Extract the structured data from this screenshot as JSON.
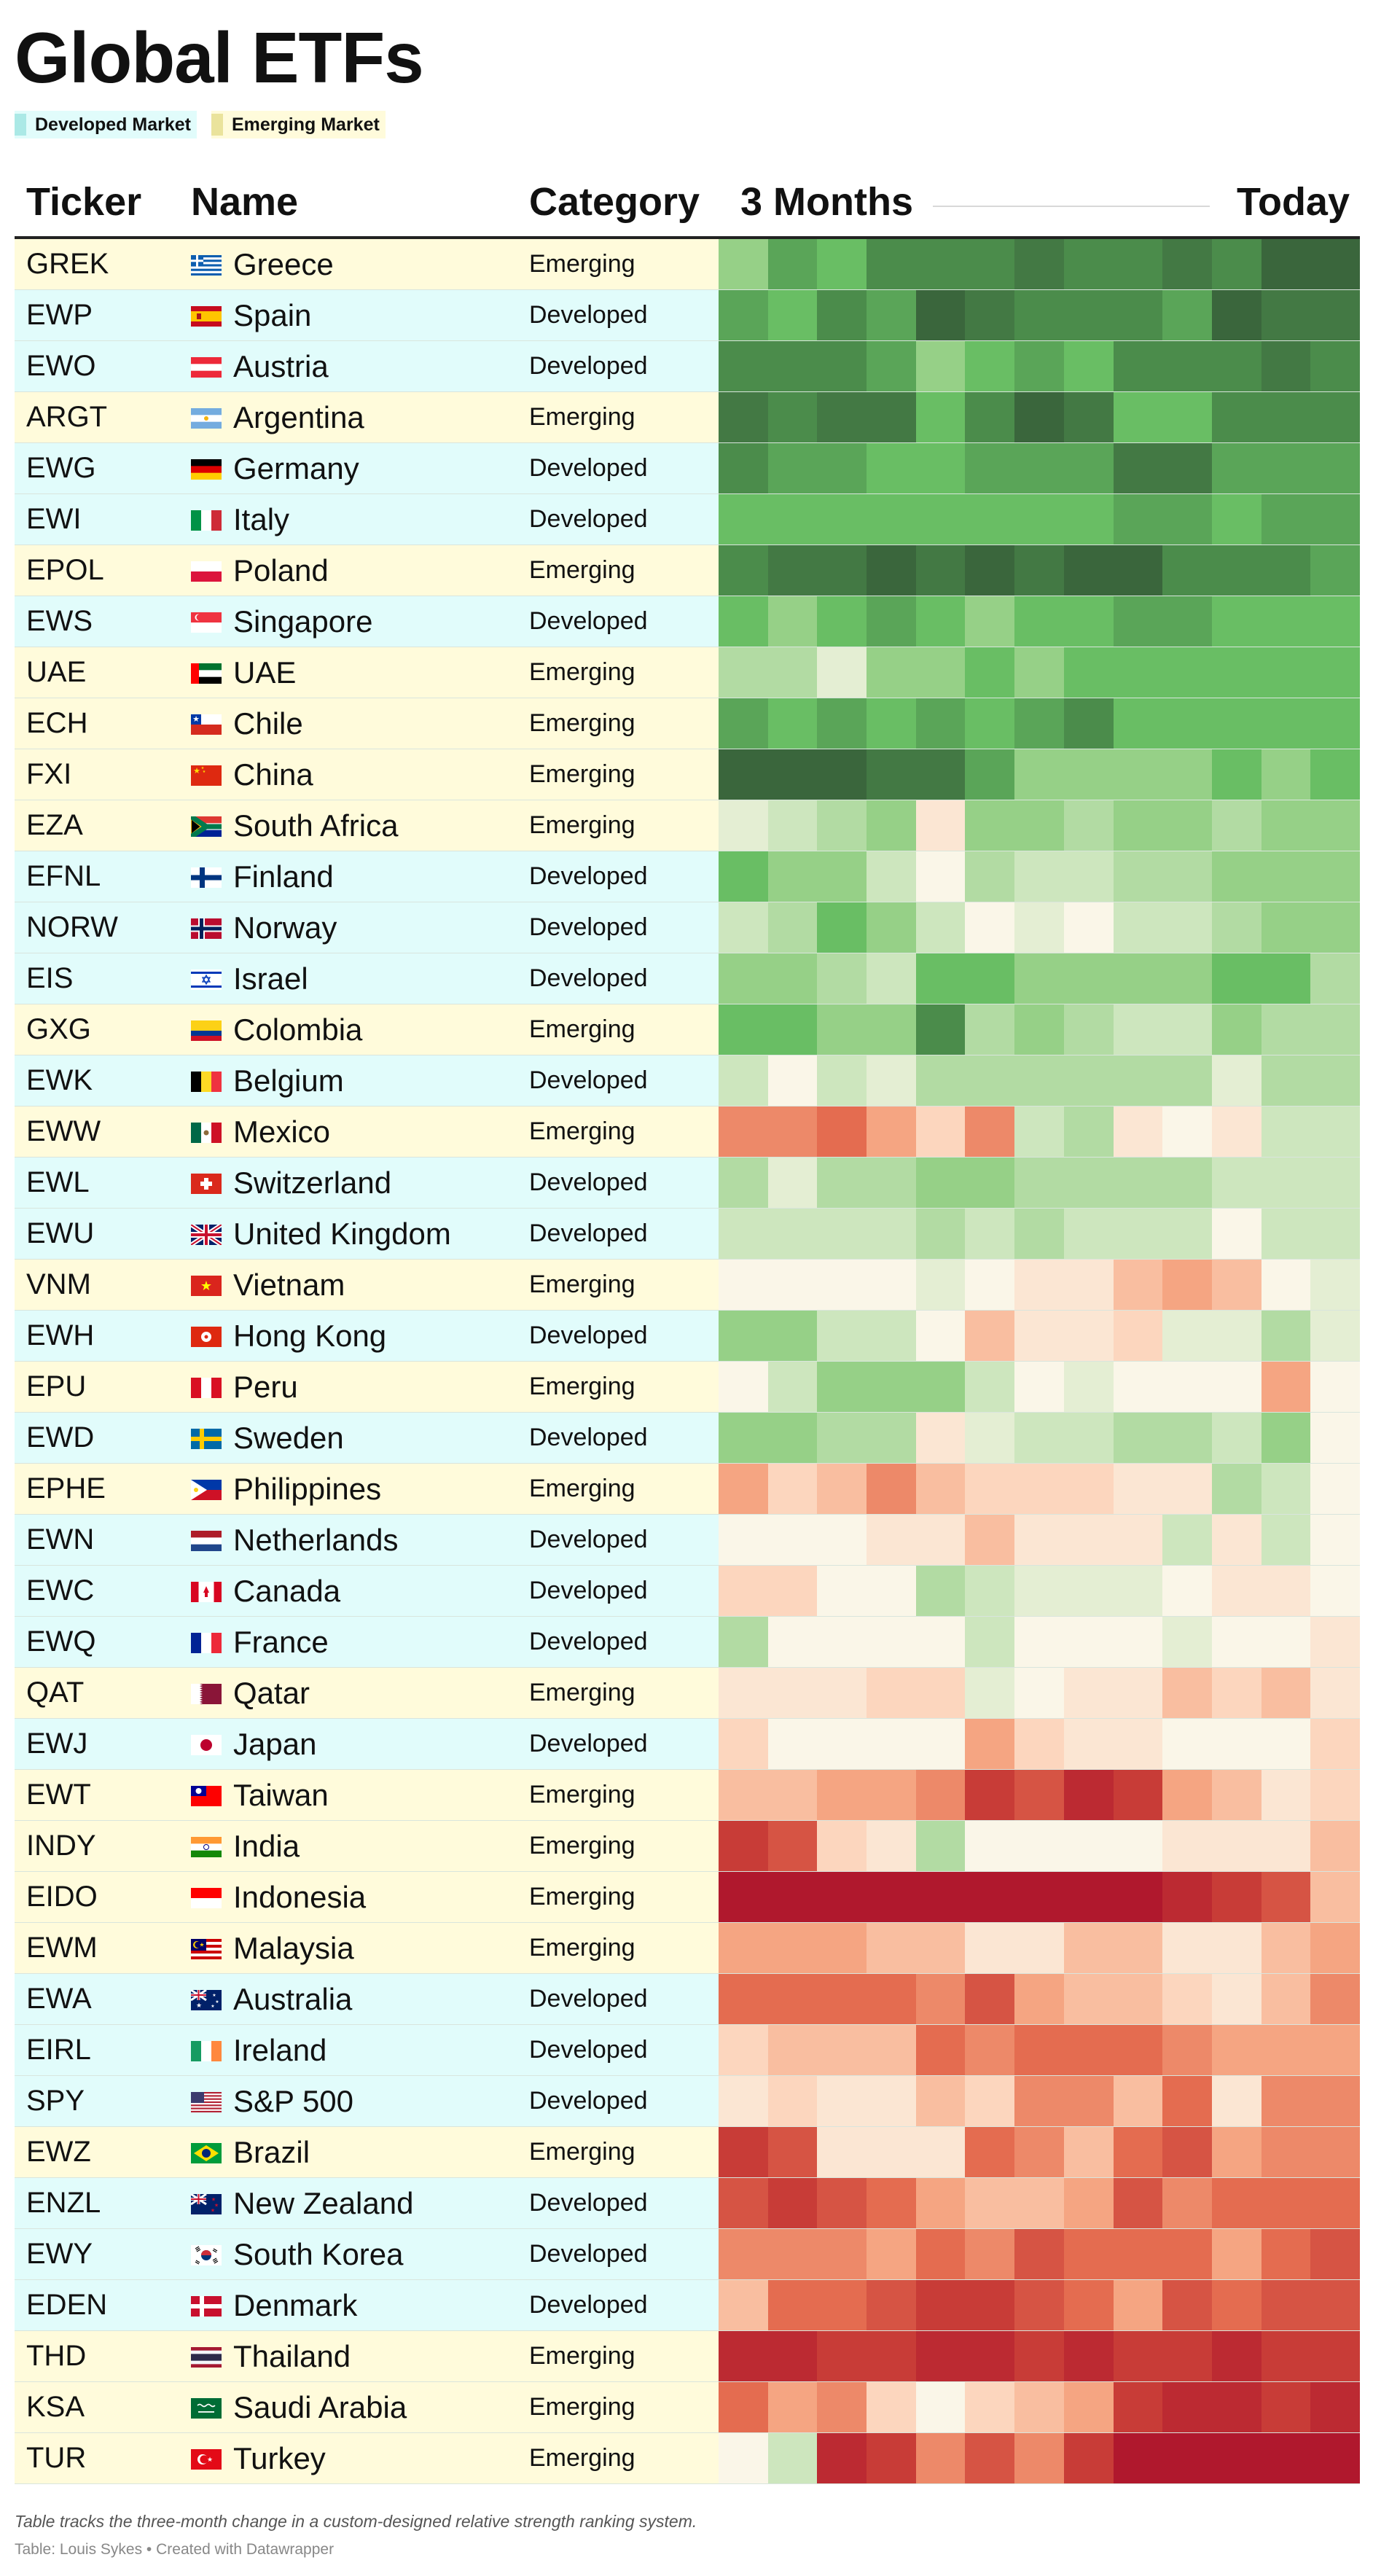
{
  "title": "Global ETFs",
  "legend": [
    {
      "label": "Developed Market",
      "color": "#abe9e6"
    },
    {
      "label": "Emerging Market",
      "color": "#eae39c"
    }
  ],
  "row_colors": {
    "Developed": "#e1fcfb",
    "Emerging": "#fffbdb"
  },
  "headers": {
    "ticker": "Ticker",
    "name": "Name",
    "category": "Category",
    "trend_start": "3 Months",
    "trend_end": "Today"
  },
  "footer": {
    "note": "Table tracks the three-month change in a custom-designed relative strength ranking system.",
    "credit": "Table: Louis Sykes • Created with Datawrapper"
  },
  "chart_data": {
    "type": "heatmap",
    "columns": [
      "Ticker",
      "Name",
      "Category",
      "3 Months → Today"
    ],
    "x_start_label": "3 Months",
    "x_end_label": "Today",
    "periods": 12,
    "value_scale": "diverging: positive = green, negative = red, 0 = neutral (relative strength change; values estimated from color)",
    "color_range": [
      -10,
      10
    ],
    "rows": [
      {
        "ticker": "GREK",
        "name": "Greece",
        "category": "Emerging",
        "flag": "gr",
        "values": [
          4,
          6,
          5,
          7,
          7,
          7,
          8,
          7,
          7,
          8,
          7,
          9,
          9
        ]
      },
      {
        "ticker": "EWP",
        "name": "Spain",
        "category": "Developed",
        "flag": "es",
        "values": [
          6,
          5,
          7,
          6,
          9,
          8,
          7,
          7,
          7,
          6,
          9,
          8,
          8
        ]
      },
      {
        "ticker": "EWO",
        "name": "Austria",
        "category": "Developed",
        "flag": "at",
        "values": [
          7,
          7,
          7,
          6,
          4,
          5,
          6,
          5,
          7,
          7,
          7,
          8,
          7
        ]
      },
      {
        "ticker": "ARGT",
        "name": "Argentina",
        "category": "Emerging",
        "flag": "ar",
        "values": [
          8,
          7,
          8,
          8,
          5,
          7,
          9,
          8,
          5,
          5,
          7,
          7,
          7
        ]
      },
      {
        "ticker": "EWG",
        "name": "Germany",
        "category": "Developed",
        "flag": "de",
        "values": [
          7,
          6,
          6,
          5,
          5,
          6,
          6,
          6,
          8,
          8,
          6,
          6,
          6
        ]
      },
      {
        "ticker": "EWI",
        "name": "Italy",
        "category": "Developed",
        "flag": "it",
        "values": [
          5,
          5,
          5,
          5,
          5,
          5,
          5,
          5,
          6,
          6,
          5,
          6,
          6
        ]
      },
      {
        "ticker": "EPOL",
        "name": "Poland",
        "category": "Emerging",
        "flag": "pl",
        "values": [
          7,
          8,
          8,
          9,
          8,
          9,
          8,
          9,
          9,
          7,
          7,
          7,
          6
        ]
      },
      {
        "ticker": "EWS",
        "name": "Singapore",
        "category": "Developed",
        "flag": "sg",
        "values": [
          5,
          4,
          5,
          6,
          5,
          4,
          5,
          5,
          6,
          6,
          5,
          5,
          5
        ]
      },
      {
        "ticker": "UAE",
        "name": "UAE",
        "category": "Emerging",
        "flag": "ae",
        "values": [
          3,
          3,
          1,
          4,
          4,
          5,
          4,
          5,
          5,
          5,
          5,
          5,
          5
        ]
      },
      {
        "ticker": "ECH",
        "name": "Chile",
        "category": "Emerging",
        "flag": "cl",
        "values": [
          6,
          5,
          6,
          5,
          6,
          5,
          6,
          7,
          5,
          5,
          5,
          5,
          5
        ]
      },
      {
        "ticker": "FXI",
        "name": "China",
        "category": "Emerging",
        "flag": "cn",
        "values": [
          9,
          9,
          9,
          8,
          8,
          6,
          4,
          4,
          4,
          4,
          5,
          4,
          5
        ]
      },
      {
        "ticker": "EZA",
        "name": "South Africa",
        "category": "Emerging",
        "flag": "za",
        "values": [
          1,
          2,
          3,
          4,
          -1,
          4,
          4,
          3,
          4,
          4,
          3,
          4,
          4
        ]
      },
      {
        "ticker": "EFNL",
        "name": "Finland",
        "category": "Developed",
        "flag": "fi",
        "values": [
          5,
          4,
          4,
          2,
          0,
          3,
          2,
          2,
          3,
          3,
          4,
          4,
          4
        ]
      },
      {
        "ticker": "NORW",
        "name": "Norway",
        "category": "Developed",
        "flag": "no",
        "values": [
          2,
          3,
          5,
          4,
          2,
          0,
          1,
          0,
          2,
          2,
          3,
          4,
          4
        ]
      },
      {
        "ticker": "EIS",
        "name": "Israel",
        "category": "Developed",
        "flag": "il",
        "values": [
          4,
          4,
          3,
          2,
          5,
          5,
          4,
          4,
          4,
          4,
          5,
          5,
          3
        ]
      },
      {
        "ticker": "GXG",
        "name": "Colombia",
        "category": "Emerging",
        "flag": "co",
        "values": [
          5,
          5,
          4,
          4,
          7,
          3,
          4,
          3,
          2,
          2,
          4,
          3,
          3
        ]
      },
      {
        "ticker": "EWK",
        "name": "Belgium",
        "category": "Developed",
        "flag": "be",
        "values": [
          2,
          0,
          2,
          1,
          3,
          3,
          3,
          3,
          3,
          3,
          1,
          3,
          3
        ]
      },
      {
        "ticker": "EWW",
        "name": "Mexico",
        "category": "Emerging",
        "flag": "mx",
        "values": [
          -5,
          -5,
          -6,
          -4,
          -2,
          -5,
          2,
          3,
          -1,
          0,
          -1,
          2,
          2
        ]
      },
      {
        "ticker": "EWL",
        "name": "Switzerland",
        "category": "Developed",
        "flag": "ch",
        "values": [
          3,
          1,
          3,
          3,
          4,
          4,
          3,
          3,
          3,
          3,
          2,
          2,
          2
        ]
      },
      {
        "ticker": "EWU",
        "name": "United Kingdom",
        "category": "Developed",
        "flag": "gb",
        "values": [
          2,
          2,
          2,
          2,
          3,
          2,
          3,
          2,
          2,
          2,
          0,
          2,
          2
        ]
      },
      {
        "ticker": "VNM",
        "name": "Vietnam",
        "category": "Emerging",
        "flag": "vn",
        "values": [
          0,
          0,
          0,
          0,
          1,
          0,
          -1,
          -1,
          -3,
          -4,
          -3,
          0,
          1
        ]
      },
      {
        "ticker": "EWH",
        "name": "Hong Kong",
        "category": "Developed",
        "flag": "hk",
        "values": [
          4,
          4,
          2,
          2,
          0,
          -3,
          -1,
          -1,
          -2,
          1,
          1,
          3,
          1
        ]
      },
      {
        "ticker": "EPU",
        "name": "Peru",
        "category": "Emerging",
        "flag": "pe",
        "values": [
          0,
          2,
          4,
          4,
          4,
          2,
          0,
          1,
          0,
          0,
          0,
          -4,
          0
        ]
      },
      {
        "ticker": "EWD",
        "name": "Sweden",
        "category": "Developed",
        "flag": "se",
        "values": [
          4,
          4,
          3,
          3,
          -1,
          1,
          2,
          2,
          3,
          3,
          2,
          4,
          0
        ]
      },
      {
        "ticker": "EPHE",
        "name": "Philippines",
        "category": "Emerging",
        "flag": "ph",
        "values": [
          -4,
          -2,
          -3,
          -5,
          -3,
          -2,
          -2,
          -2,
          -1,
          -1,
          3,
          2,
          0
        ]
      },
      {
        "ticker": "EWN",
        "name": "Netherlands",
        "category": "Developed",
        "flag": "nl",
        "values": [
          0,
          0,
          0,
          -1,
          -1,
          -3,
          -1,
          -1,
          -1,
          2,
          -1,
          2,
          0
        ]
      },
      {
        "ticker": "EWC",
        "name": "Canada",
        "category": "Developed",
        "flag": "ca",
        "values": [
          -2,
          -2,
          0,
          0,
          3,
          2,
          1,
          1,
          1,
          0,
          -1,
          -1,
          0
        ]
      },
      {
        "ticker": "EWQ",
        "name": "France",
        "category": "Developed",
        "flag": "fr",
        "values": [
          3,
          0,
          0,
          0,
          0,
          2,
          0,
          0,
          0,
          1,
          0,
          0,
          -1
        ]
      },
      {
        "ticker": "QAT",
        "name": "Qatar",
        "category": "Emerging",
        "flag": "qa",
        "values": [
          -1,
          -1,
          -1,
          -2,
          -2,
          1,
          0,
          -1,
          -1,
          -3,
          -2,
          -3,
          -1
        ]
      },
      {
        "ticker": "EWJ",
        "name": "Japan",
        "category": "Developed",
        "flag": "jp",
        "values": [
          -2,
          0,
          0,
          0,
          0,
          -4,
          -2,
          -1,
          -1,
          0,
          0,
          0,
          -2
        ]
      },
      {
        "ticker": "EWT",
        "name": "Taiwan",
        "category": "Emerging",
        "flag": "tw",
        "values": [
          -3,
          -3,
          -4,
          -4,
          -5,
          -8,
          -7,
          -9,
          -8,
          -4,
          -3,
          -1,
          -2
        ]
      },
      {
        "ticker": "INDY",
        "name": "India",
        "category": "Emerging",
        "flag": "in",
        "values": [
          -8,
          -7,
          -2,
          -1,
          3,
          0,
          0,
          0,
          0,
          -1,
          -1,
          -1,
          -3
        ]
      },
      {
        "ticker": "EIDO",
        "name": "Indonesia",
        "category": "Emerging",
        "flag": "id",
        "values": [
          -10,
          -10,
          -10,
          -10,
          -10,
          -10,
          -10,
          -10,
          -10,
          -9,
          -8,
          -7,
          -3
        ]
      },
      {
        "ticker": "EWM",
        "name": "Malaysia",
        "category": "Emerging",
        "flag": "my",
        "values": [
          -4,
          -4,
          -4,
          -3,
          -3,
          -1,
          -1,
          -3,
          -3,
          -1,
          -1,
          -3,
          -4
        ]
      },
      {
        "ticker": "EWA",
        "name": "Australia",
        "category": "Developed",
        "flag": "au",
        "values": [
          -6,
          -6,
          -6,
          -6,
          -5,
          -7,
          -4,
          -3,
          -3,
          -2,
          -1,
          -3,
          -5
        ]
      },
      {
        "ticker": "EIRL",
        "name": "Ireland",
        "category": "Developed",
        "flag": "ie",
        "values": [
          -2,
          -3,
          -3,
          -3,
          -6,
          -5,
          -6,
          -6,
          -6,
          -5,
          -4,
          -4,
          -4
        ]
      },
      {
        "ticker": "SPY",
        "name": "S&P 500",
        "category": "Developed",
        "flag": "us",
        "values": [
          -1,
          -2,
          -1,
          -1,
          -3,
          -2,
          -5,
          -5,
          -3,
          -6,
          -1,
          -5,
          -5
        ]
      },
      {
        "ticker": "EWZ",
        "name": "Brazil",
        "category": "Emerging",
        "flag": "br",
        "values": [
          -8,
          -7,
          -1,
          -1,
          -1,
          -6,
          -5,
          -3,
          -6,
          -7,
          -4,
          -5,
          -5
        ]
      },
      {
        "ticker": "ENZL",
        "name": "New Zealand",
        "category": "Developed",
        "flag": "nz",
        "values": [
          -7,
          -8,
          -7,
          -6,
          -4,
          -3,
          -3,
          -4,
          -7,
          -5,
          -6,
          -6,
          -6
        ]
      },
      {
        "ticker": "EWY",
        "name": "South Korea",
        "category": "Developed",
        "flag": "kr",
        "values": [
          -5,
          -5,
          -5,
          -4,
          -6,
          -5,
          -7,
          -6,
          -6,
          -6,
          -4,
          -6,
          -7
        ]
      },
      {
        "ticker": "EDEN",
        "name": "Denmark",
        "category": "Developed",
        "flag": "dk",
        "values": [
          -3,
          -6,
          -6,
          -7,
          -8,
          -8,
          -7,
          -6,
          -4,
          -7,
          -6,
          -7,
          -7
        ]
      },
      {
        "ticker": "THD",
        "name": "Thailand",
        "category": "Emerging",
        "flag": "th",
        "values": [
          -9,
          -9,
          -8,
          -8,
          -9,
          -9,
          -8,
          -9,
          -8,
          -8,
          -9,
          -8,
          -8
        ]
      },
      {
        "ticker": "KSA",
        "name": "Saudi Arabia",
        "category": "Emerging",
        "flag": "sa",
        "values": [
          -6,
          -4,
          -5,
          -2,
          0,
          -2,
          -3,
          -4,
          -8,
          -9,
          -9,
          -8,
          -9
        ]
      },
      {
        "ticker": "TUR",
        "name": "Turkey",
        "category": "Emerging",
        "flag": "tr",
        "values": [
          0,
          2,
          -9,
          -8,
          -5,
          -7,
          -5,
          -8,
          -10,
          -10,
          -10,
          -10,
          -10
        ]
      }
    ]
  }
}
